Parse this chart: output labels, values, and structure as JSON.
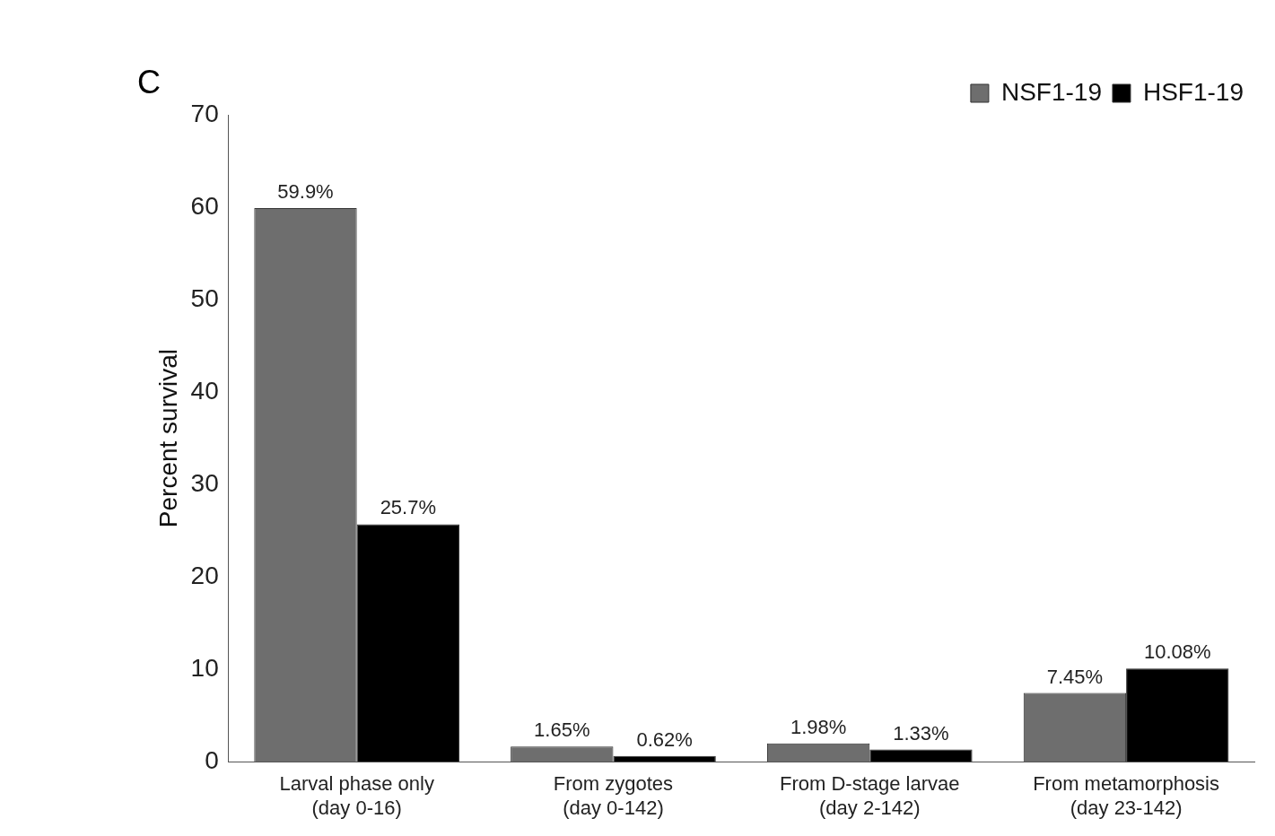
{
  "chart_data": {
    "type": "bar",
    "title": "C",
    "ylabel": "Percent survival",
    "categories": [
      "Larval phase only\n(day 0-16)",
      "From zygotes\n(day 0-142)",
      "From D-stage larvae\n(day 2-142)",
      "From metamorphosis\n(day 23-142)"
    ],
    "series": [
      {
        "name": "NSF1-19",
        "color": "#6e6e6e",
        "values": [
          59.9,
          1.65,
          1.98,
          7.45
        ],
        "value_labels": [
          "59.9%",
          "1.65%",
          "1.98%",
          "7.45%"
        ]
      },
      {
        "name": "HSF1-19",
        "color": "#000000",
        "values": [
          25.7,
          0.62,
          1.33,
          10.08
        ],
        "value_labels": [
          "25.7%",
          "0.62%",
          "1.33%",
          "10.08%"
        ]
      }
    ],
    "ylim": [
      0,
      70
    ],
    "yticks": [
      0,
      10,
      20,
      30,
      40,
      50,
      60,
      70
    ],
    "grid": false,
    "legend": "top right"
  }
}
